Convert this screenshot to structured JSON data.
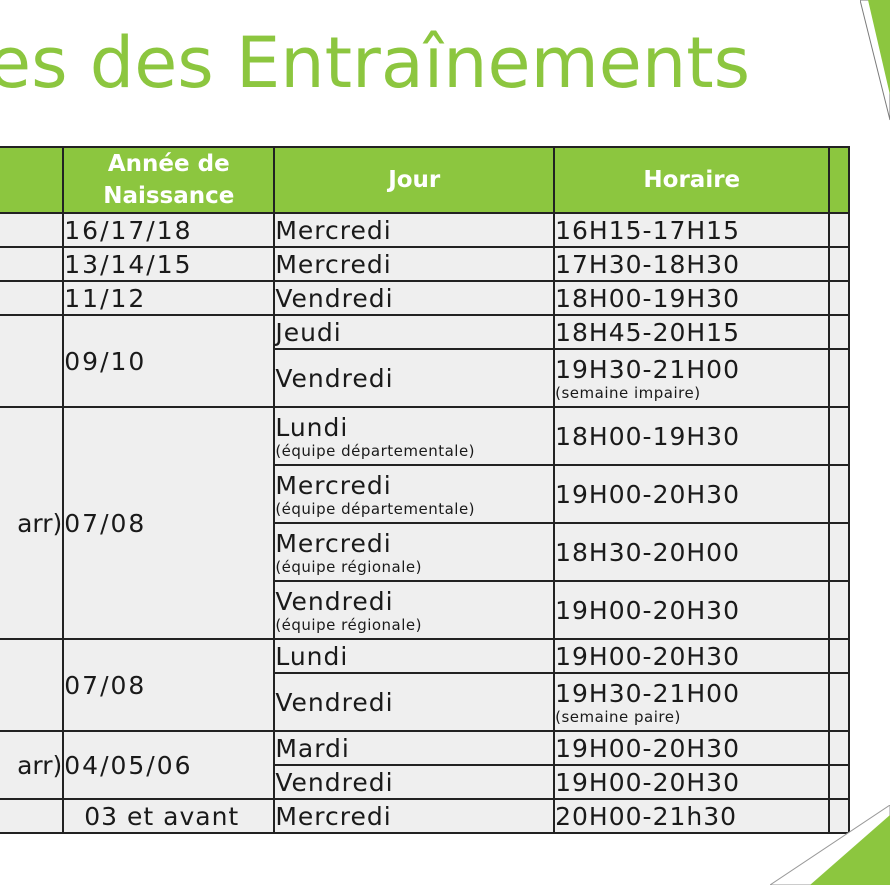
{
  "title": "es des Entraînements",
  "headers": {
    "col1": "",
    "col2_line1": "Année de",
    "col2_line2": "Naissance",
    "col3": "Jour",
    "col4": "Horaire"
  },
  "groups": {
    "g1": {
      "label": "",
      "year": "16/17/18"
    },
    "g2": {
      "label": "",
      "year": "13/14/15"
    },
    "g3": {
      "label": "",
      "year": "11/12"
    },
    "g4": {
      "label": "",
      "year": "09/10"
    },
    "g5": {
      "label": "arr)",
      "year": "07/08"
    },
    "g6": {
      "label": "",
      "year": "07/08"
    },
    "g7": {
      "label": "arr)",
      "year": "04/05/06"
    },
    "g8": {
      "label": "",
      "year": "03 et avant"
    }
  },
  "sessions": {
    "s1": {
      "day": "Mercredi",
      "time": "16H15-17H15"
    },
    "s2": {
      "day": "Mercredi",
      "time": "17H30-18H30"
    },
    "s3": {
      "day": "Vendredi",
      "time": "18H00-19H30"
    },
    "s4": {
      "day": "Jeudi",
      "time": "18H45-20H15"
    },
    "s5": {
      "day": "Vendredi",
      "time": "19H30-21H00",
      "time_note": "(semaine impaire)"
    },
    "s6": {
      "day": "Lundi",
      "day_note": "(équipe départementale)",
      "time": "18H00-19H30"
    },
    "s7": {
      "day": "Mercredi",
      "day_note": "(équipe départementale)",
      "time": "19H00-20H30"
    },
    "s8": {
      "day": "Mercredi",
      "day_note": "(équipe régionale)",
      "time": "18H30-20H00"
    },
    "s9": {
      "day": "Vendredi",
      "day_note": "(équipe régionale)",
      "time": "19H00-20H30"
    },
    "s10": {
      "day": "Lundi",
      "time": "19H00-20H30"
    },
    "s11": {
      "day": "Vendredi",
      "time": "19H30-21H00",
      "time_note": "(semaine paire)"
    },
    "s12": {
      "day": "Mardi",
      "time": "19H00-20H30"
    },
    "s13": {
      "day": "Vendredi",
      "time": "19H00-20H30"
    },
    "s14": {
      "day": "Mercredi",
      "time": "20H00-21h30"
    }
  },
  "colors": {
    "accent": "#8cc63f",
    "cell_bg": "#efefef",
    "border": "#222222"
  }
}
